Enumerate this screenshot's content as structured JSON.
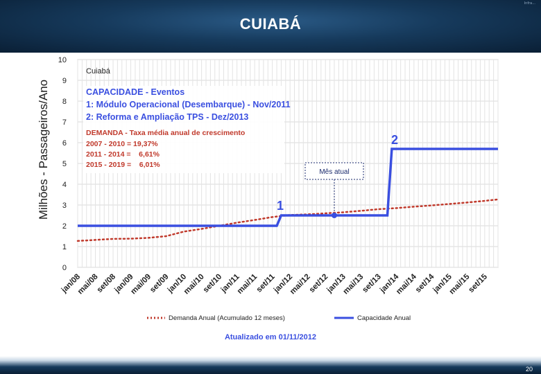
{
  "slide": {
    "title": "CUIABÁ",
    "page_number": "20",
    "corner_mark": "Infra...",
    "updated": "Atualizado em 01/11/2012"
  },
  "colors": {
    "capacity": "#3a4fe0",
    "demand": "#c0392b",
    "annotation_title": "#3a4fe0",
    "annotation_demand": "#c0392b",
    "header": "#163a5c"
  },
  "chart_data": {
    "type": "line",
    "title": "Cuiabá",
    "ylabel": "Milhões - Passageiros/Ano",
    "xlabel": "",
    "ylim": [
      0,
      10
    ],
    "yticks": [
      0,
      1,
      2,
      3,
      4,
      5,
      6,
      7,
      8,
      9,
      10
    ],
    "x_tick_labels": [
      "jan/08",
      "mai/08",
      "set/08",
      "jan/09",
      "mai/09",
      "set/09",
      "jan/10",
      "mai/10",
      "set/10",
      "jan/11",
      "mai/11",
      "set/11",
      "jan/12",
      "mai/12",
      "set/12",
      "jan/13",
      "mai/13",
      "set/13",
      "jan/14",
      "mai/14",
      "set/14",
      "jan/15",
      "mai/15",
      "set/15"
    ],
    "x_range": [
      "jan/08",
      "dez/15"
    ],
    "grid": true,
    "legend_position": "bottom",
    "series": [
      {
        "name": "Demanda Anual (Acumulado 12 meses)",
        "style": "dotted",
        "points": [
          {
            "x": "jan/08",
            "y": 1.27
          },
          {
            "x": "mai/08",
            "y": 1.32
          },
          {
            "x": "set/08",
            "y": 1.37
          },
          {
            "x": "jan/09",
            "y": 1.38
          },
          {
            "x": "mai/09",
            "y": 1.42
          },
          {
            "x": "set/09",
            "y": 1.5
          },
          {
            "x": "jan/10",
            "y": 1.72
          },
          {
            "x": "mai/10",
            "y": 1.85
          },
          {
            "x": "set/10",
            "y": 2.0
          },
          {
            "x": "jan/11",
            "y": 2.15
          },
          {
            "x": "mai/11",
            "y": 2.28
          },
          {
            "x": "set/11",
            "y": 2.42
          },
          {
            "x": "jan/12",
            "y": 2.52
          },
          {
            "x": "mai/12",
            "y": 2.55
          },
          {
            "x": "set/12",
            "y": 2.6
          },
          {
            "x": "jan/13",
            "y": 2.65
          },
          {
            "x": "mai/13",
            "y": 2.72
          },
          {
            "x": "set/13",
            "y": 2.8
          },
          {
            "x": "jan/14",
            "y": 2.85
          },
          {
            "x": "mai/14",
            "y": 2.92
          },
          {
            "x": "set/14",
            "y": 2.98
          },
          {
            "x": "jan/15",
            "y": 3.05
          },
          {
            "x": "mai/15",
            "y": 3.12
          },
          {
            "x": "set/15",
            "y": 3.2
          },
          {
            "x": "dez/15",
            "y": 3.27
          }
        ]
      },
      {
        "name": "Capacidade Anual",
        "style": "solid",
        "points": [
          {
            "x": "jan/08",
            "y": 2.0
          },
          {
            "x": "out/11",
            "y": 2.0
          },
          {
            "x": "nov/11",
            "y": 2.5
          },
          {
            "x": "nov/13",
            "y": 2.5
          },
          {
            "x": "dez/13",
            "y": 5.7
          },
          {
            "x": "dez/15",
            "y": 5.7
          }
        ]
      }
    ],
    "annotations": {
      "capacity_header": "CAPACIDADE - Eventos",
      "capacity_lines": [
        "1: Módulo Operacional (Desembarque) - Nov/2011",
        "2: Reforma e Ampliação TPS - Dez/2013"
      ],
      "demand_header": "DEMANDA - Taxa média anual de crescimento",
      "demand_lines": [
        "2007 - 2010 = 19,37%",
        "2011 - 2014 =    6,61%",
        "2015 - 2019 =    6,01%"
      ],
      "event_1": "1",
      "event_2": "2",
      "current_month_label": "Mês atual",
      "current_month": {
        "x": "nov/12",
        "y": 2.5
      }
    }
  }
}
